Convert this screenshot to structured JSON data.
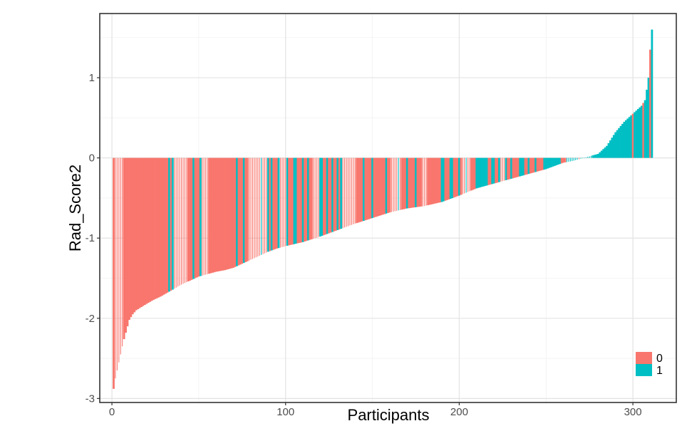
{
  "chart_data": {
    "type": "bar",
    "title": "",
    "xlabel": "Participants",
    "ylabel": "Rad_Score2",
    "xlim": [
      -7,
      325
    ],
    "ylim": [
      -3.05,
      1.8
    ],
    "x_ticks": [
      0,
      100,
      200,
      300
    ],
    "x_tick_labels": [
      "0",
      "100",
      "200",
      "300"
    ],
    "y_ticks": [
      1,
      0,
      -1,
      -2,
      -3
    ],
    "y_tick_labels": [
      "1",
      "0",
      "-1",
      "-2",
      "-3"
    ],
    "grid": true,
    "legend": {
      "position": "bottom-right",
      "entries": [
        {
          "label": "0",
          "color": "#F8766D"
        },
        {
          "label": "1",
          "color": "#00BFC4"
        }
      ]
    },
    "series": [
      {
        "group": "0",
        "color": "#F8766D"
      },
      {
        "group": "1",
        "color": "#00BFC4"
      }
    ],
    "n_participants": 311,
    "value_curve": [
      [
        1,
        -2.88
      ],
      [
        2,
        -2.75
      ],
      [
        3,
        -2.65
      ],
      [
        4,
        -2.55
      ],
      [
        5,
        -2.45
      ],
      [
        6,
        -2.35
      ],
      [
        7,
        -2.26
      ],
      [
        8,
        -2.18
      ],
      [
        9,
        -2.1
      ],
      [
        10,
        -2.02
      ],
      [
        12,
        -1.95
      ],
      [
        14,
        -1.9
      ],
      [
        17,
        -1.86
      ],
      [
        20,
        -1.82
      ],
      [
        24,
        -1.77
      ],
      [
        28,
        -1.73
      ],
      [
        32,
        -1.68
      ],
      [
        36,
        -1.63
      ],
      [
        40,
        -1.58
      ],
      [
        45,
        -1.53
      ],
      [
        50,
        -1.48
      ],
      [
        55,
        -1.45
      ],
      [
        60,
        -1.42
      ],
      [
        65,
        -1.4
      ],
      [
        70,
        -1.37
      ],
      [
        75,
        -1.32
      ],
      [
        80,
        -1.27
      ],
      [
        85,
        -1.22
      ],
      [
        90,
        -1.17
      ],
      [
        95,
        -1.13
      ],
      [
        100,
        -1.1
      ],
      [
        110,
        -1.05
      ],
      [
        120,
        -0.98
      ],
      [
        130,
        -0.9
      ],
      [
        140,
        -0.82
      ],
      [
        150,
        -0.75
      ],
      [
        160,
        -0.68
      ],
      [
        170,
        -0.63
      ],
      [
        180,
        -0.6
      ],
      [
        190,
        -0.55
      ],
      [
        200,
        -0.47
      ],
      [
        210,
        -0.38
      ],
      [
        220,
        -0.32
      ],
      [
        230,
        -0.26
      ],
      [
        240,
        -0.2
      ],
      [
        250,
        -0.14
      ],
      [
        255,
        -0.1
      ],
      [
        260,
        -0.06
      ],
      [
        265,
        -0.04
      ],
      [
        270,
        -0.01
      ],
      [
        275,
        0.02
      ],
      [
        280,
        0.05
      ],
      [
        285,
        0.15
      ],
      [
        290,
        0.32
      ],
      [
        295,
        0.45
      ],
      [
        300,
        0.55
      ],
      [
        305,
        0.65
      ],
      [
        307,
        0.72
      ],
      [
        308,
        0.85
      ],
      [
        309,
        1.0
      ],
      [
        310,
        1.35
      ],
      [
        311,
        1.6
      ]
    ],
    "group1_ranges": [
      [
        33,
        33
      ],
      [
        35,
        35
      ],
      [
        47,
        47
      ],
      [
        51,
        51
      ],
      [
        72,
        72
      ],
      [
        76,
        76
      ],
      [
        86,
        86
      ],
      [
        90,
        90
      ],
      [
        92,
        92
      ],
      [
        96,
        96
      ],
      [
        101,
        101
      ],
      [
        105,
        106
      ],
      [
        110,
        110
      ],
      [
        113,
        113
      ],
      [
        120,
        121
      ],
      [
        124,
        124
      ],
      [
        127,
        127
      ],
      [
        130,
        130
      ],
      [
        132,
        132
      ],
      [
        145,
        145
      ],
      [
        150,
        150
      ],
      [
        158,
        158
      ],
      [
        165,
        165
      ],
      [
        170,
        170
      ],
      [
        175,
        175
      ],
      [
        190,
        191
      ],
      [
        195,
        196
      ],
      [
        200,
        200
      ],
      [
        204,
        204
      ],
      [
        210,
        216
      ],
      [
        219,
        220
      ],
      [
        223,
        223
      ],
      [
        227,
        227
      ],
      [
        230,
        230
      ],
      [
        235,
        237
      ],
      [
        240,
        240
      ],
      [
        244,
        244
      ],
      [
        249,
        258
      ],
      [
        262,
        268
      ],
      [
        270,
        299
      ],
      [
        301,
        305
      ],
      [
        307,
        309
      ],
      [
        311,
        311
      ]
    ],
    "white_gap_ranges": [
      [
        2,
        6
      ],
      [
        36,
        43
      ],
      [
        52,
        55
      ],
      [
        79,
        89
      ],
      [
        97,
        100
      ],
      [
        116,
        119
      ],
      [
        133,
        140
      ],
      [
        161,
        166
      ],
      [
        179,
        181
      ],
      [
        202,
        206
      ],
      [
        224,
        226
      ],
      [
        262,
        276
      ]
    ]
  }
}
